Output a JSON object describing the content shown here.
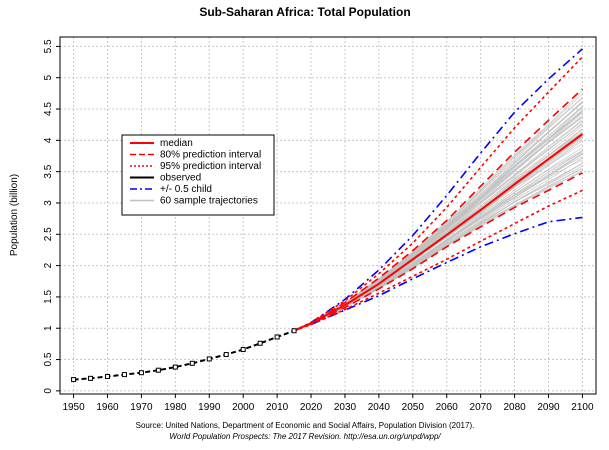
{
  "chart_data": {
    "type": "line",
    "title": "Sub-Saharan Africa: Total Population",
    "xlabel": "",
    "ylabel": "Population (billion)",
    "xlim": [
      1946,
      2104
    ],
    "ylim": [
      -0.05,
      5.65
    ],
    "x_ticks": [
      "1950",
      "1960",
      "1970",
      "1980",
      "1990",
      "2000",
      "2010",
      "2020",
      "2030",
      "2040",
      "2050",
      "2060",
      "2070",
      "2080",
      "2090",
      "2100"
    ],
    "y_ticks": [
      "0",
      "0.5",
      "1",
      "1.5",
      "2",
      "2.5",
      "3",
      "3.5",
      "4",
      "4.5",
      "5",
      "5.5"
    ],
    "grid": true,
    "legend_position": "top-left",
    "legend": [
      {
        "label": "median",
        "color": "#ff0000",
        "style": "solid"
      },
      {
        "label": "80% prediction interval",
        "color": "#ff0000",
        "style": "dashed"
      },
      {
        "label": "95% prediction interval",
        "color": "#ff0000",
        "style": "dotted"
      },
      {
        "label": "observed",
        "color": "#000000",
        "style": "solid"
      },
      {
        "label": "+/- 0.5 child",
        "color": "#0000ff",
        "style": "dashdot"
      },
      {
        "label": "60 sample trajectories",
        "color": "#bfbfbf",
        "style": "solid"
      }
    ],
    "observed": {
      "x": [
        1950,
        1955,
        1960,
        1965,
        1970,
        1975,
        1980,
        1985,
        1990,
        1995,
        2000,
        2005,
        2010,
        2015
      ],
      "y": [
        0.18,
        0.2,
        0.23,
        0.26,
        0.29,
        0.33,
        0.38,
        0.44,
        0.51,
        0.58,
        0.66,
        0.76,
        0.86,
        0.96
      ]
    },
    "series": [
      {
        "name": "median",
        "x": [
          2015,
          2020,
          2030,
          2040,
          2050,
          2060,
          2070,
          2080,
          2090,
          2100
        ],
        "y": [
          0.96,
          1.08,
          1.37,
          1.71,
          2.1,
          2.49,
          2.89,
          3.3,
          3.7,
          4.1
        ]
      },
      {
        "name": "80% prediction interval upper",
        "x": [
          2015,
          2020,
          2030,
          2040,
          2050,
          2060,
          2070,
          2080,
          2090,
          2100
        ],
        "y": [
          0.96,
          1.08,
          1.41,
          1.8,
          2.24,
          2.72,
          3.27,
          3.81,
          4.32,
          4.82
        ]
      },
      {
        "name": "80% prediction interval lower",
        "x": [
          2015,
          2020,
          2030,
          2040,
          2050,
          2060,
          2070,
          2080,
          2090,
          2100
        ],
        "y": [
          0.96,
          1.07,
          1.33,
          1.63,
          1.95,
          2.3,
          2.62,
          2.93,
          3.2,
          3.48
        ]
      },
      {
        "name": "95% prediction interval upper",
        "x": [
          2015,
          2020,
          2030,
          2040,
          2050,
          2060,
          2070,
          2080,
          2090,
          2100
        ],
        "y": [
          0.96,
          1.09,
          1.44,
          1.87,
          2.36,
          2.93,
          3.57,
          4.2,
          4.77,
          5.33
        ]
      },
      {
        "name": "95% prediction interval lower",
        "x": [
          2015,
          2020,
          2030,
          2040,
          2050,
          2060,
          2070,
          2080,
          2090,
          2100
        ],
        "y": [
          0.96,
          1.06,
          1.3,
          1.56,
          1.83,
          2.1,
          2.39,
          2.67,
          2.95,
          3.2
        ]
      },
      {
        "name": "+/- 0.5 child upper",
        "x": [
          2015,
          2020,
          2030,
          2040,
          2050,
          2060,
          2070,
          2080,
          2090,
          2100
        ],
        "y": [
          0.96,
          1.09,
          1.46,
          1.93,
          2.48,
          3.12,
          3.8,
          4.45,
          4.98,
          5.46
        ]
      },
      {
        "name": "+/- 0.5 child lower",
        "x": [
          2015,
          2020,
          2030,
          2040,
          2050,
          2060,
          2070,
          2080,
          2090,
          2100
        ],
        "y": [
          0.96,
          1.06,
          1.29,
          1.52,
          1.79,
          2.05,
          2.3,
          2.51,
          2.7,
          2.77
        ]
      }
    ],
    "sample_trajectories": {
      "count": 60,
      "x_start": 2015,
      "x_end": 2100
    }
  },
  "source_line_1": "Source: United Nations, Department of Economic and Social Affairs, Population Division (2017).",
  "source_line_2_italic": "World Population Prospects: The 2017 Revision.",
  "source_line_2_url": " http://esa.un.org/unpd/wpp/",
  "colors": {
    "median": "#ff0000",
    "observed": "#000000",
    "child": "#0000ff",
    "trajectory": "#c0c0c0",
    "grid": "#c8c8c8"
  }
}
